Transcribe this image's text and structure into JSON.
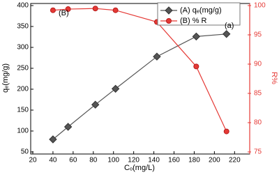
{
  "chart_data": {
    "type": "line",
    "x_label": "Cₒ(mg/L)",
    "y_label": "qₑ(mg/g)",
    "y2_label": "R%",
    "annotations": [
      "(B)",
      "(a)"
    ],
    "x": [
      40,
      55,
      82,
      102,
      143,
      182,
      212
    ],
    "series": [
      {
        "name": "(A) qₑ(mg/g)",
        "color": "#555555",
        "marker": "diamond",
        "values": [
          80,
          110,
          163,
          201,
          278,
          326,
          332
        ]
      },
      {
        "name": "(B) % R",
        "color": "#e53935",
        "marker": "circle",
        "axis": "y2",
        "values": [
          99.2,
          99.4,
          99.5,
          99.2,
          97.2,
          89.6,
          78.5
        ]
      }
    ],
    "xlim": [
      20,
      235
    ],
    "xticks": [
      20,
      40,
      60,
      80,
      100,
      120,
      140,
      160,
      180,
      200,
      220
    ],
    "ylim": [
      50,
      400
    ],
    "yticks": [
      50,
      100,
      150,
      200,
      250,
      300,
      350,
      400
    ],
    "y2lim": [
      75,
      100
    ],
    "y2ticks": [
      75,
      80,
      85,
      90,
      95,
      100
    ],
    "y2_color": "#e53935",
    "legend": "top-right"
  }
}
